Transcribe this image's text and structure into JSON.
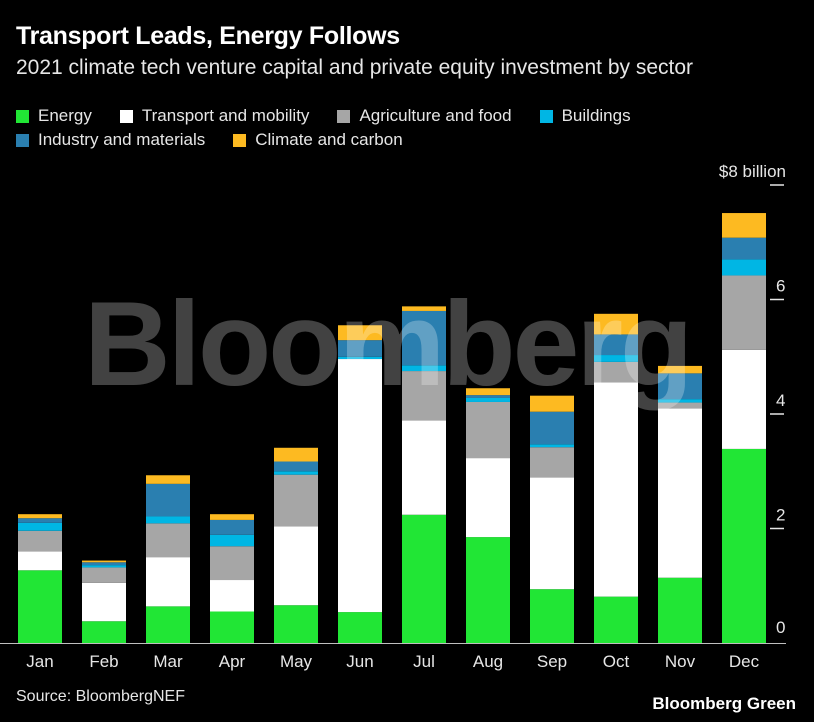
{
  "title": "Transport Leads, Energy Follows",
  "subtitle": "2021 climate tech venture capital and private equity investment by sector",
  "source": "Source: BloombergNEF",
  "brand": "Bloomberg Green",
  "watermark": "Bloomberg",
  "chart_data": {
    "type": "bar",
    "stacked": true,
    "title": "Transport Leads, Energy Follows",
    "subtitle": "2021 climate tech venture capital and private equity investment by sector",
    "categories": [
      "Jan",
      "Feb",
      "Mar",
      "Apr",
      "May",
      "Jun",
      "Jul",
      "Aug",
      "Sep",
      "Oct",
      "Nov",
      "Dec"
    ],
    "ylim": [
      0,
      8
    ],
    "yticks": [
      0,
      2,
      4,
      6,
      8
    ],
    "ytick_labels": [
      "0",
      "2",
      "4",
      "6",
      "$8 billion"
    ],
    "axis_side": "right",
    "grid": false,
    "legend_position": "top",
    "series": [
      {
        "name": "Energy",
        "color": "#21e635",
        "values": [
          1.27,
          0.38,
          0.64,
          0.55,
          0.66,
          0.54,
          2.24,
          1.85,
          0.94,
          0.81,
          1.14,
          3.39
        ]
      },
      {
        "name": "Transport and mobility",
        "color": "#ffffff",
        "values": [
          0.33,
          0.67,
          0.86,
          0.55,
          1.38,
          4.42,
          1.65,
          1.38,
          1.95,
          3.74,
          2.96,
          1.73
        ]
      },
      {
        "name": "Agriculture and food",
        "color": "#a6a6a6",
        "values": [
          0.36,
          0.27,
          0.59,
          0.59,
          0.9,
          0.0,
          0.86,
          0.98,
          0.53,
          0.36,
          0.1,
          1.3
        ]
      },
      {
        "name": "Buildings",
        "color": "#00b6e4",
        "values": [
          0.14,
          0.04,
          0.12,
          0.2,
          0.06,
          0.04,
          0.1,
          0.07,
          0.05,
          0.12,
          0.06,
          0.28
        ]
      },
      {
        "name": "Industry and materials",
        "color": "#2a7fb0",
        "values": [
          0.08,
          0.05,
          0.57,
          0.26,
          0.17,
          0.29,
          0.95,
          0.05,
          0.57,
          0.36,
          0.45,
          0.38
        ]
      },
      {
        "name": "Climate and carbon",
        "color": "#fdba21",
        "values": [
          0.07,
          0.03,
          0.15,
          0.1,
          0.24,
          0.26,
          0.08,
          0.12,
          0.28,
          0.36,
          0.13,
          0.43
        ]
      }
    ]
  }
}
